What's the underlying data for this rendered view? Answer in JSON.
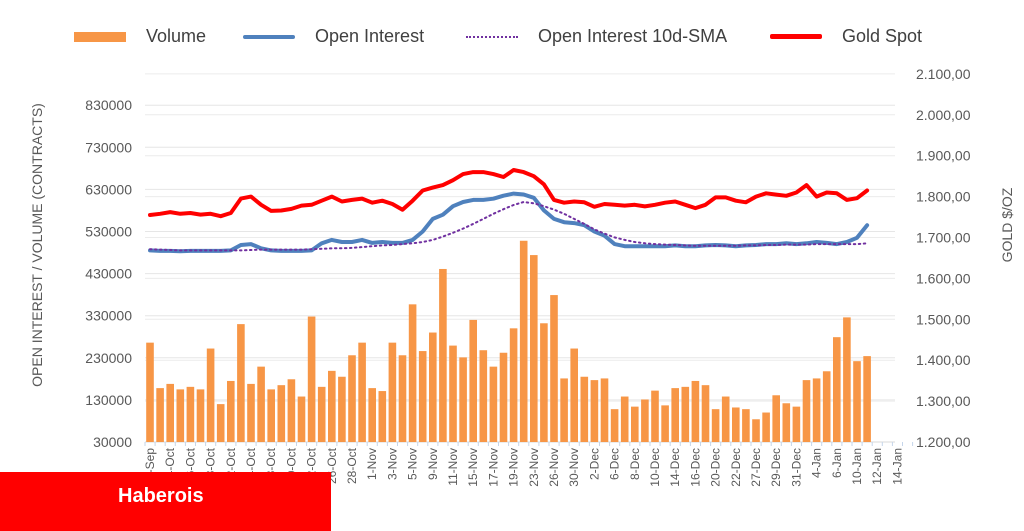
{
  "legend": {
    "volume": "Volume",
    "open_interest": "Open Interest",
    "sma": "Open Interest 10d-SMA",
    "gold": "Gold Spot"
  },
  "colors": {
    "volume": "#f79646",
    "open_interest": "#4f81bd",
    "sma": "#7030a0",
    "gold": "#ff0000",
    "banner": "#ff0000"
  },
  "banner": {
    "text": "Haberois"
  },
  "chart_data": {
    "type": "bar+line",
    "ylabel_left": "OPEN INTEREST / VOLUME (CONTRACTS)",
    "ylabel_right": "GOLD $/OZ",
    "ylim_left": [
      30000,
      900000
    ],
    "ylim_right": [
      1200,
      2100
    ],
    "left_ticks": [
      "30000",
      "130000",
      "230000",
      "330000",
      "430000",
      "530000",
      "630000",
      "730000",
      "830000"
    ],
    "right_ticks": [
      "1.200,00",
      "1.300,00",
      "1.400,00",
      "1.500,00",
      "1.600,00",
      "1.700,00",
      "1.800,00",
      "1.900,00",
      "2.000,00",
      "2.100,00"
    ],
    "x_labels": [
      "30-Sep",
      "4-Oct",
      "6-Oct",
      "8-Oct",
      "12-Oct",
      "14-Oct",
      "18-Oct",
      "20-Oct",
      "22-Oct",
      "26-Oct",
      "28-Oct",
      "1-Nov",
      "3-Nov",
      "5-Nov",
      "9-Nov",
      "11-Nov",
      "15-Nov",
      "17-Nov",
      "19-Nov",
      "23-Nov",
      "26-Nov",
      "30-Nov",
      "2-Dec",
      "6-Dec",
      "8-Dec",
      "10-Dec",
      "14-Dec",
      "16-Dec",
      "20-Dec",
      "22-Dec",
      "27-Dec",
      "29-Dec",
      "31-Dec",
      "4-Jan",
      "6-Jan",
      "10-Jan",
      "12-Jan",
      "14-Jan"
    ],
    "category_slots": 76,
    "series": [
      {
        "name": "Volume",
        "type": "bar",
        "values": [
          266000,
          158000,
          168000,
          155000,
          161000,
          155000,
          252000,
          120000,
          175000,
          310000,
          168000,
          209000,
          155000,
          165000,
          179000,
          138000,
          328000,
          161000,
          199000,
          185000,
          236000,
          266000,
          158000,
          151000,
          266000,
          236000,
          357000,
          246000,
          290000,
          441000,
          259000,
          231000,
          320000,
          248000,
          209000,
          242000,
          300000,
          508000,
          474000,
          312000,
          379000,
          181000,
          252000,
          185000,
          177000,
          181000,
          108000,
          138000,
          114000,
          131000,
          152000,
          117000,
          158000,
          161000,
          175000,
          165000,
          108000,
          138000,
          112000,
          108000,
          84000,
          100000,
          141000,
          122000,
          114000,
          177000,
          181000,
          198000,
          279000,
          326000,
          222000,
          234000
        ]
      },
      {
        "name": "Open Interest",
        "type": "line",
        "axis": "left",
        "values": [
          485000,
          484000,
          484000,
          483000,
          484000,
          484000,
          484000,
          484000,
          485000,
          498000,
          500000,
          490000,
          485000,
          484000,
          484000,
          484000,
          485000,
          502000,
          510000,
          505000,
          505000,
          510000,
          503000,
          505000,
          503000,
          503000,
          510000,
          530000,
          560000,
          570000,
          590000,
          600000,
          605000,
          605000,
          608000,
          615000,
          620000,
          618000,
          610000,
          580000,
          560000,
          552000,
          550000,
          545000,
          530000,
          520000,
          500000,
          495000,
          495000,
          495000,
          495000,
          495000,
          497000,
          495000,
          495000,
          497000,
          498000,
          497000,
          495000,
          497000,
          498000,
          500000,
          500000,
          502000,
          500000,
          502000,
          505000,
          503000,
          500000,
          505000,
          515000,
          545000
        ]
      },
      {
        "name": "Open Interest 10d-SMA",
        "type": "line",
        "axis": "left",
        "values": [
          488000,
          487000,
          486000,
          485000,
          485000,
          485000,
          485000,
          485000,
          485000,
          485000,
          486000,
          487000,
          487000,
          487000,
          487000,
          487000,
          488000,
          489000,
          490000,
          490000,
          491000,
          493000,
          495000,
          497000,
          498000,
          500000,
          502000,
          505000,
          510000,
          518000,
          527000,
          537000,
          548000,
          560000,
          572000,
          583000,
          593000,
          600000,
          597000,
          590000,
          582000,
          572000,
          560000,
          548000,
          535000,
          525000,
          516000,
          510000,
          505000,
          502000,
          500000,
          499000,
          498000,
          497000,
          496000,
          496000,
          496000,
          496000,
          496000,
          497000,
          497000,
          498000,
          498000,
          499000,
          499000,
          499000,
          500000,
          500000,
          500000,
          500000,
          500000,
          502000
        ]
      },
      {
        "name": "Gold Spot",
        "type": "line",
        "axis": "right",
        "values": [
          1755,
          1758,
          1762,
          1758,
          1760,
          1756,
          1758,
          1752,
          1760,
          1795,
          1800,
          1780,
          1765,
          1766,
          1770,
          1778,
          1780,
          1790,
          1800,
          1788,
          1792,
          1795,
          1785,
          1790,
          1782,
          1768,
          1790,
          1815,
          1822,
          1828,
          1840,
          1855,
          1860,
          1860,
          1855,
          1848,
          1865,
          1860,
          1850,
          1830,
          1792,
          1785,
          1788,
          1786,
          1775,
          1782,
          1780,
          1778,
          1780,
          1776,
          1780,
          1785,
          1788,
          1780,
          1772,
          1780,
          1798,
          1798,
          1790,
          1786,
          1800,
          1808,
          1805,
          1802,
          1810,
          1828,
          1800,
          1810,
          1808,
          1792,
          1796,
          1815
        ]
      }
    ]
  }
}
